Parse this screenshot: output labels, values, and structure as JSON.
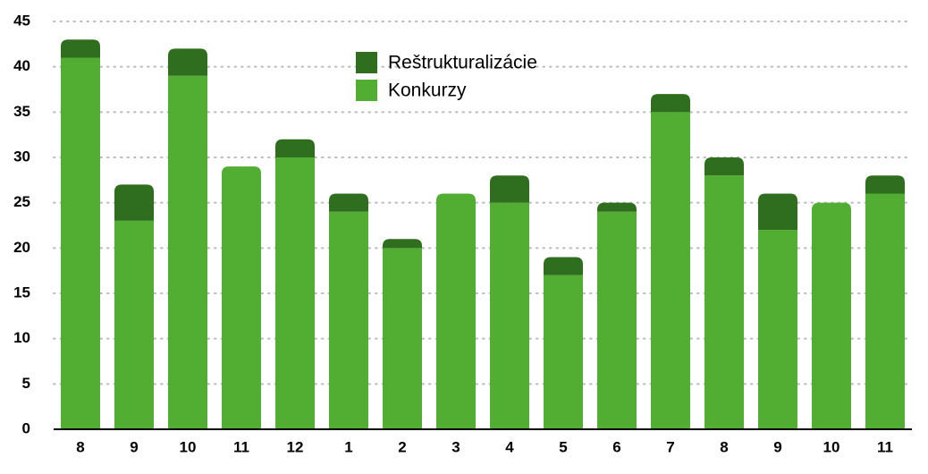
{
  "chart_data": {
    "type": "stacked-bar",
    "categories": [
      "8",
      "9",
      "10",
      "11",
      "12",
      "1",
      "2",
      "3",
      "4",
      "5",
      "6",
      "7",
      "8",
      "9",
      "10",
      "11"
    ],
    "series": [
      {
        "name": "Reštrukturalizácie",
        "color": "#2f6e1f",
        "values": [
          2,
          4,
          3,
          0,
          2,
          2,
          1,
          0,
          3,
          2,
          1,
          2,
          2,
          4,
          0,
          2
        ]
      },
      {
        "name": "Konkurzy",
        "color": "#52ae32",
        "values": [
          41,
          23,
          39,
          29,
          30,
          24,
          20,
          26,
          25,
          17,
          24,
          35,
          28,
          22,
          25,
          26
        ]
      }
    ],
    "ylim": [
      0,
      45
    ],
    "yticks": [
      0,
      5,
      10,
      15,
      20,
      25,
      30,
      35,
      40,
      45
    ],
    "grid": true
  }
}
